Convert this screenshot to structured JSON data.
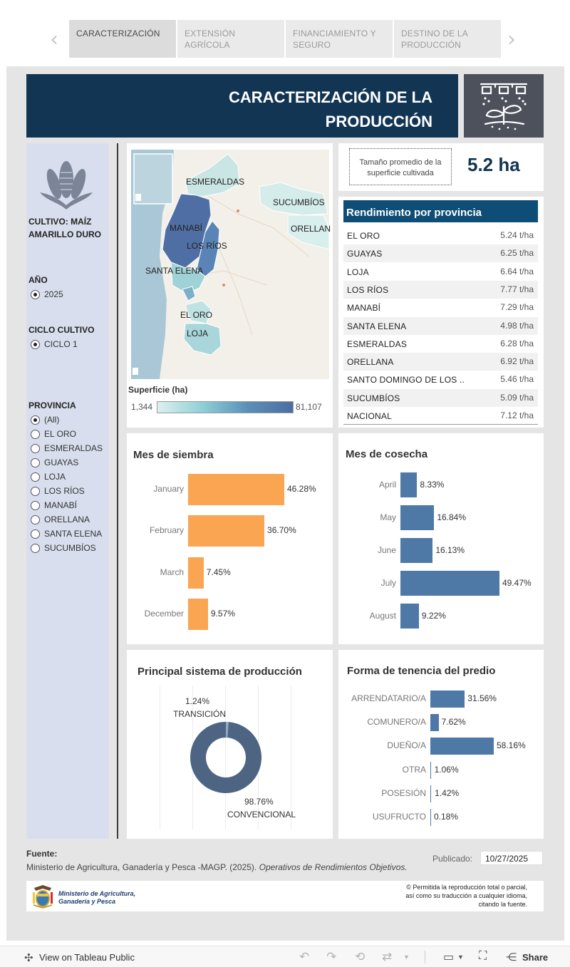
{
  "tabs": [
    "CARACTERIZACIÓN",
    "EXTENSIÓN AGRÍCOLA",
    "FINANCIAMIENTO Y SEGURO",
    "DESTINO DE LA PRODUCCIÓN"
  ],
  "header": {
    "title_line1": "CARACTERIZACIÓN DE LA",
    "title_line2": "PRODUCCIÓN"
  },
  "sidebar": {
    "crop_label": "CULTIVO: MAÍZ AMARILLO DURO",
    "year_label": "AÑO",
    "year_options": [
      "2025"
    ],
    "cycle_label": "CICLO CULTIVO",
    "cycle_options": [
      "CICLO 1"
    ],
    "province_label": "PROVINCIA",
    "province_options": [
      "(All)",
      "EL ORO",
      "ESMERALDAS",
      "GUAYAS",
      "LOJA",
      "LOS RÍOS",
      "MANABÍ",
      "ORELLANA",
      "SANTA ELENA",
      "SUCUMBÍOS"
    ]
  },
  "map": {
    "labels": [
      "ESMERALDAS",
      "SUCUMBÍOS",
      "ORELLAN",
      "MANABÍ",
      "LOS RÍOS",
      "SANTA ELENA",
      "EL ORO",
      "LOJA"
    ],
    "legend_title": "Superficie (ha)",
    "legend_min": "1,344",
    "legend_max": "81,107"
  },
  "kpi": {
    "label": "Tamaño promedio de la superficie cultivada",
    "value": "5.2 ha"
  },
  "yield_table": {
    "title": "Rendimiento por provincia",
    "rows": [
      {
        "name": "EL ORO",
        "value": "5.24 t/ha"
      },
      {
        "name": "GUAYAS",
        "value": "6.25 t/ha"
      },
      {
        "name": "LOJA",
        "value": "6.64 t/ha"
      },
      {
        "name": "LOS RÍOS",
        "value": "7.77 t/ha"
      },
      {
        "name": "MANABÍ",
        "value": "7.29 t/ha"
      },
      {
        "name": "SANTA ELENA",
        "value": "4.98 t/ha"
      },
      {
        "name": "ESMERALDAS",
        "value": "6.28 t/ha"
      },
      {
        "name": "ORELLANA",
        "value": "6.92 t/ha"
      },
      {
        "name": "SANTO DOMINGO DE LOS ..",
        "value": "5.46 t/ha"
      },
      {
        "name": "SUCUMBÍOS",
        "value": "5.09 t/ha"
      },
      {
        "name": "NACIONAL",
        "value": "7.12 t/ha"
      }
    ]
  },
  "chart_data": [
    {
      "type": "bar",
      "title": "Mes de siembra",
      "categories": [
        "January",
        "February",
        "March",
        "December"
      ],
      "values": [
        46.28,
        36.7,
        7.45,
        9.57
      ],
      "labels": [
        "46.28%",
        "36.70%",
        "7.45%",
        "9.57%"
      ],
      "color": "#f9a551"
    },
    {
      "type": "bar",
      "title": "Mes de cosecha",
      "categories": [
        "April",
        "May",
        "June",
        "July",
        "August"
      ],
      "values": [
        8.33,
        16.84,
        16.13,
        49.47,
        9.22
      ],
      "labels": [
        "8.33%",
        "16.84%",
        "16.13%",
        "49.47%",
        "9.22%"
      ],
      "color": "#4e79a7"
    },
    {
      "type": "pie",
      "title": "Principal sistema de producción",
      "categories": [
        "TRANSICIÓN",
        "CONVENCIONAL"
      ],
      "values": [
        1.24,
        98.76
      ],
      "labels": [
        "1.24%",
        "98.76%"
      ],
      "colors": [
        "#8fa9c2",
        "#4d6583"
      ]
    },
    {
      "type": "bar",
      "title": "Forma de tenencia del predio",
      "categories": [
        "ARRENDATARIO/A",
        "COMUNERO/A",
        "DUEÑO/A",
        "OTRA",
        "POSESIÓN",
        "USUFRUCTO"
      ],
      "values": [
        31.56,
        7.62,
        58.16,
        1.06,
        1.42,
        0.18
      ],
      "labels": [
        "31.56%",
        "7.62%",
        "58.16%",
        "1.06%",
        "1.42%",
        "0.18%"
      ],
      "color": "#4e79a7"
    }
  ],
  "footer": {
    "source_label": "Fuente:",
    "source_text": "Ministerio de Agricultura, Ganadería y Pesca -MAGP. (2025).",
    "source_italic": "Operativos de Rendimientos Objetivos.",
    "published_label": "Publicado:",
    "published_value": "10/27/2025",
    "ministry_line1": "Ministerio de Agricultura,",
    "ministry_line2": "Ganadería y Pesca",
    "rights_line1": "© Permitida la reproducción total o parcial,",
    "rights_line2": "así como su traducción a cualquier idioma,",
    "rights_line3": "citando la fuente."
  },
  "toolbar": {
    "view_label": "View on Tableau Public",
    "share_label": "Share"
  }
}
